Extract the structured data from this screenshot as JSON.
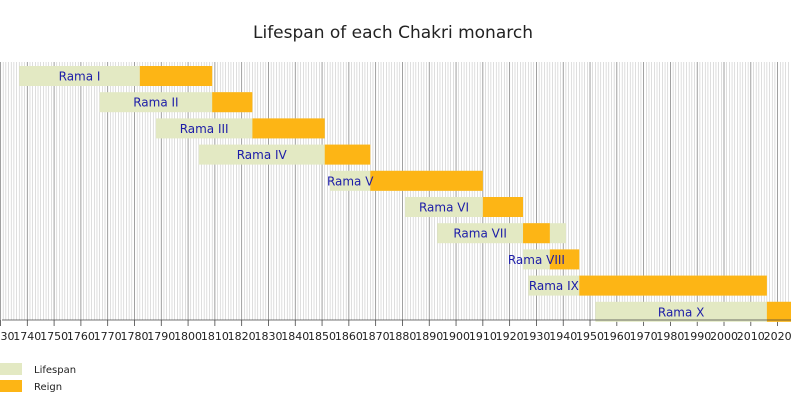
{
  "chart_data": {
    "type": "timeline",
    "title": "Lifespan of each Chakri monarch",
    "categories": [
      "Rama I",
      "Rama II",
      "Rama III",
      "Rama IV",
      "Rama V",
      "Rama VI",
      "Rama VII",
      "Rama VIII",
      "Rama IX",
      "Rama X"
    ],
    "series": [
      {
        "name": "Lifespan",
        "color": "#e3e9c3",
        "start": [
          1737,
          1767,
          1788,
          1804,
          1853,
          1881,
          1893,
          1925,
          1927,
          1952
        ],
        "end": [
          1809,
          1824,
          1851,
          1868,
          1910,
          1925,
          1941,
          1946,
          2016,
          2025
        ]
      },
      {
        "name": "Reign",
        "color": "#fdb515",
        "start": [
          1782,
          1809,
          1824,
          1851,
          1868,
          1910,
          1925,
          1935,
          1946,
          2016
        ],
        "end": [
          1809,
          1824,
          1851,
          1868,
          1910,
          1925,
          1935,
          1946,
          2016,
          2025
        ]
      }
    ],
    "xlim": [
      1730,
      2025
    ],
    "xticks": [
      1730,
      1740,
      1750,
      1760,
      1770,
      1780,
      1790,
      1800,
      1810,
      1820,
      1830,
      1840,
      1850,
      1860,
      1870,
      1880,
      1890,
      1900,
      1910,
      1920,
      1930,
      1940,
      1950,
      1960,
      1970,
      1980,
      1990,
      2000,
      2010,
      2020
    ],
    "minor_per_interval": 10,
    "grid": true,
    "legend": "bottom-left"
  }
}
